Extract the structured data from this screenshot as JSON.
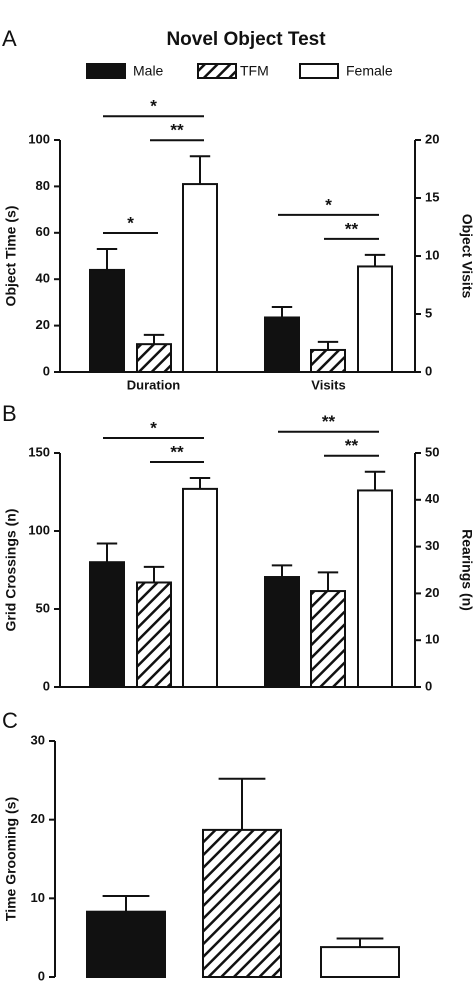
{
  "chart_data": [
    {
      "type": "bar",
      "panel": "A",
      "title": "Novel Object Test",
      "y_label": "Object Time (s)",
      "y2_label": "Object Visits",
      "categories": [
        "Duration",
        "Visits"
      ],
      "group_axes": [
        "y",
        "y2"
      ],
      "ylim": [
        0,
        100
      ],
      "yticks": [
        0,
        20,
        40,
        60,
        80,
        100
      ],
      "y2lim": [
        0,
        20
      ],
      "y2ticks": [
        0,
        5,
        10,
        15,
        20
      ],
      "legend": true,
      "series": [
        {
          "name": "Male",
          "style": "solid",
          "values": [
            44,
            4.7
          ],
          "errors": [
            9,
            0.9
          ]
        },
        {
          "name": "TFM",
          "style": "hatch",
          "values": [
            12,
            1.9
          ],
          "errors": [
            4,
            0.7
          ]
        },
        {
          "name": "Female",
          "style": "open",
          "values": [
            81,
            9.1
          ],
          "errors": [
            12,
            1.0
          ]
        }
      ],
      "annotations": [
        {
          "text": "*",
          "group": 0,
          "from": 0,
          "to": 1
        },
        {
          "text": "**",
          "group": 0,
          "from": 1,
          "to": 2
        },
        {
          "text": "*",
          "group": 0,
          "from": 0,
          "to": 2
        },
        {
          "text": "**",
          "group": 1,
          "from": 1,
          "to": 2
        },
        {
          "text": "*",
          "group": 1,
          "from": 0,
          "to": 2
        }
      ]
    },
    {
      "type": "bar",
      "panel": "B",
      "y_label": "Grid Crossings (n)",
      "y2_label": "Rearings (n)",
      "group_axes": [
        "y",
        "y2"
      ],
      "ylim": [
        0,
        150
      ],
      "yticks": [
        0,
        50,
        100,
        150
      ],
      "y2lim": [
        0,
        50
      ],
      "y2ticks": [
        0,
        10,
        20,
        30,
        40,
        50
      ],
      "series": [
        {
          "style": "solid",
          "values": [
            80,
            23.5
          ],
          "errors": [
            12,
            2.5
          ]
        },
        {
          "style": "hatch",
          "values": [
            67,
            20.5
          ],
          "errors": [
            10,
            4
          ]
        },
        {
          "style": "open",
          "values": [
            127,
            42
          ],
          "errors": [
            7,
            4
          ]
        }
      ],
      "annotations": [
        {
          "text": "**",
          "group": 0,
          "from": 1,
          "to": 2
        },
        {
          "text": "*",
          "group": 0,
          "from": 0,
          "to": 2
        },
        {
          "text": "**",
          "group": 1,
          "from": 1,
          "to": 2
        },
        {
          "text": "**",
          "group": 1,
          "from": 0,
          "to": 2
        }
      ]
    },
    {
      "type": "bar",
      "panel": "C",
      "y_label": "Time Grooming (s)",
      "group_axes": [
        "y"
      ],
      "ylim": [
        0,
        30
      ],
      "yticks": [
        0,
        10,
        20,
        30
      ],
      "series": [
        {
          "style": "solid",
          "values": [
            8.3
          ],
          "errors": [
            2
          ]
        },
        {
          "style": "hatch",
          "values": [
            18.7
          ],
          "errors": [
            6.5
          ]
        },
        {
          "style": "open",
          "values": [
            3.8
          ],
          "errors": [
            1.1
          ]
        }
      ]
    }
  ]
}
